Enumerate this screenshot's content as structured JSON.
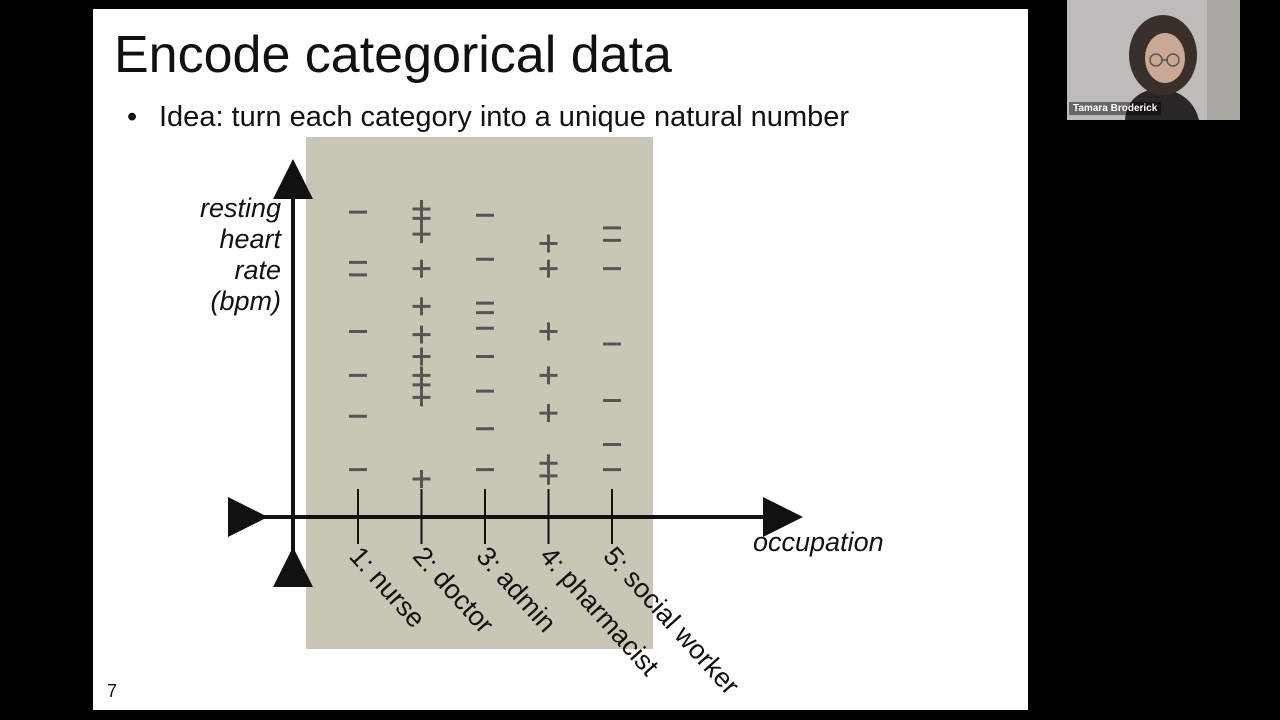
{
  "slide": {
    "title": "Encode categorical data",
    "bullet": "Idea: turn each category into a unique natural number",
    "page_number": "7"
  },
  "chart_data": {
    "type": "scatter",
    "title": "",
    "xlabel": "occupation",
    "ylabel_lines": [
      "resting",
      "heart",
      "rate",
      "(bpm)"
    ],
    "categories": [
      "1: nurse",
      "2: doctor",
      "3: admin",
      "4: pharmacist",
      "5: social worker"
    ],
    "marker_legend": {
      "plus": "+",
      "minus": "−"
    },
    "points": [
      {
        "x": 1,
        "y": 9.2,
        "label": "-"
      },
      {
        "x": 1,
        "y": 7.6,
        "label": "-"
      },
      {
        "x": 1,
        "y": 7.2,
        "label": "-"
      },
      {
        "x": 1,
        "y": 5.4,
        "label": "-"
      },
      {
        "x": 1,
        "y": 4.0,
        "label": "-"
      },
      {
        "x": 1,
        "y": 2.7,
        "label": "-"
      },
      {
        "x": 1,
        "y": 1.0,
        "label": "-"
      },
      {
        "x": 2,
        "y": 9.3,
        "label": "+"
      },
      {
        "x": 2,
        "y": 9.0,
        "label": "+"
      },
      {
        "x": 2,
        "y": 8.5,
        "label": "+"
      },
      {
        "x": 2,
        "y": 7.4,
        "label": "+"
      },
      {
        "x": 2,
        "y": 6.2,
        "label": "+"
      },
      {
        "x": 2,
        "y": 5.3,
        "label": "+"
      },
      {
        "x": 2,
        "y": 4.6,
        "label": "+"
      },
      {
        "x": 2,
        "y": 4.0,
        "label": "+"
      },
      {
        "x": 2,
        "y": 3.7,
        "label": "+"
      },
      {
        "x": 2,
        "y": 3.3,
        "label": "+"
      },
      {
        "x": 2,
        "y": 0.7,
        "label": "+"
      },
      {
        "x": 3,
        "y": 9.1,
        "label": "-"
      },
      {
        "x": 3,
        "y": 7.7,
        "label": "-"
      },
      {
        "x": 3,
        "y": 6.3,
        "label": "-"
      },
      {
        "x": 3,
        "y": 6.0,
        "label": "-"
      },
      {
        "x": 3,
        "y": 5.5,
        "label": "-"
      },
      {
        "x": 3,
        "y": 4.6,
        "label": "-"
      },
      {
        "x": 3,
        "y": 3.5,
        "label": "-"
      },
      {
        "x": 3,
        "y": 2.3,
        "label": "-"
      },
      {
        "x": 3,
        "y": 1.0,
        "label": "-"
      },
      {
        "x": 4,
        "y": 8.2,
        "label": "+"
      },
      {
        "x": 4,
        "y": 7.4,
        "label": "+"
      },
      {
        "x": 4,
        "y": 5.4,
        "label": "+"
      },
      {
        "x": 4,
        "y": 4.0,
        "label": "+"
      },
      {
        "x": 4,
        "y": 2.8,
        "label": "+"
      },
      {
        "x": 4,
        "y": 1.2,
        "label": "+"
      },
      {
        "x": 4,
        "y": 0.8,
        "label": "+"
      },
      {
        "x": 5,
        "y": 8.7,
        "label": "-"
      },
      {
        "x": 5,
        "y": 8.3,
        "label": "-"
      },
      {
        "x": 5,
        "y": 7.4,
        "label": "-"
      },
      {
        "x": 5,
        "y": 5.0,
        "label": "-"
      },
      {
        "x": 5,
        "y": 3.2,
        "label": "-"
      },
      {
        "x": 5,
        "y": 1.8,
        "label": "-"
      },
      {
        "x": 5,
        "y": 1.0,
        "label": "-"
      }
    ],
    "colors": {
      "highlight_band": "#c9c6b6",
      "axis": "#111111",
      "marker": "#555555"
    }
  },
  "webcam": {
    "participant_name": "Tamara Broderick"
  }
}
